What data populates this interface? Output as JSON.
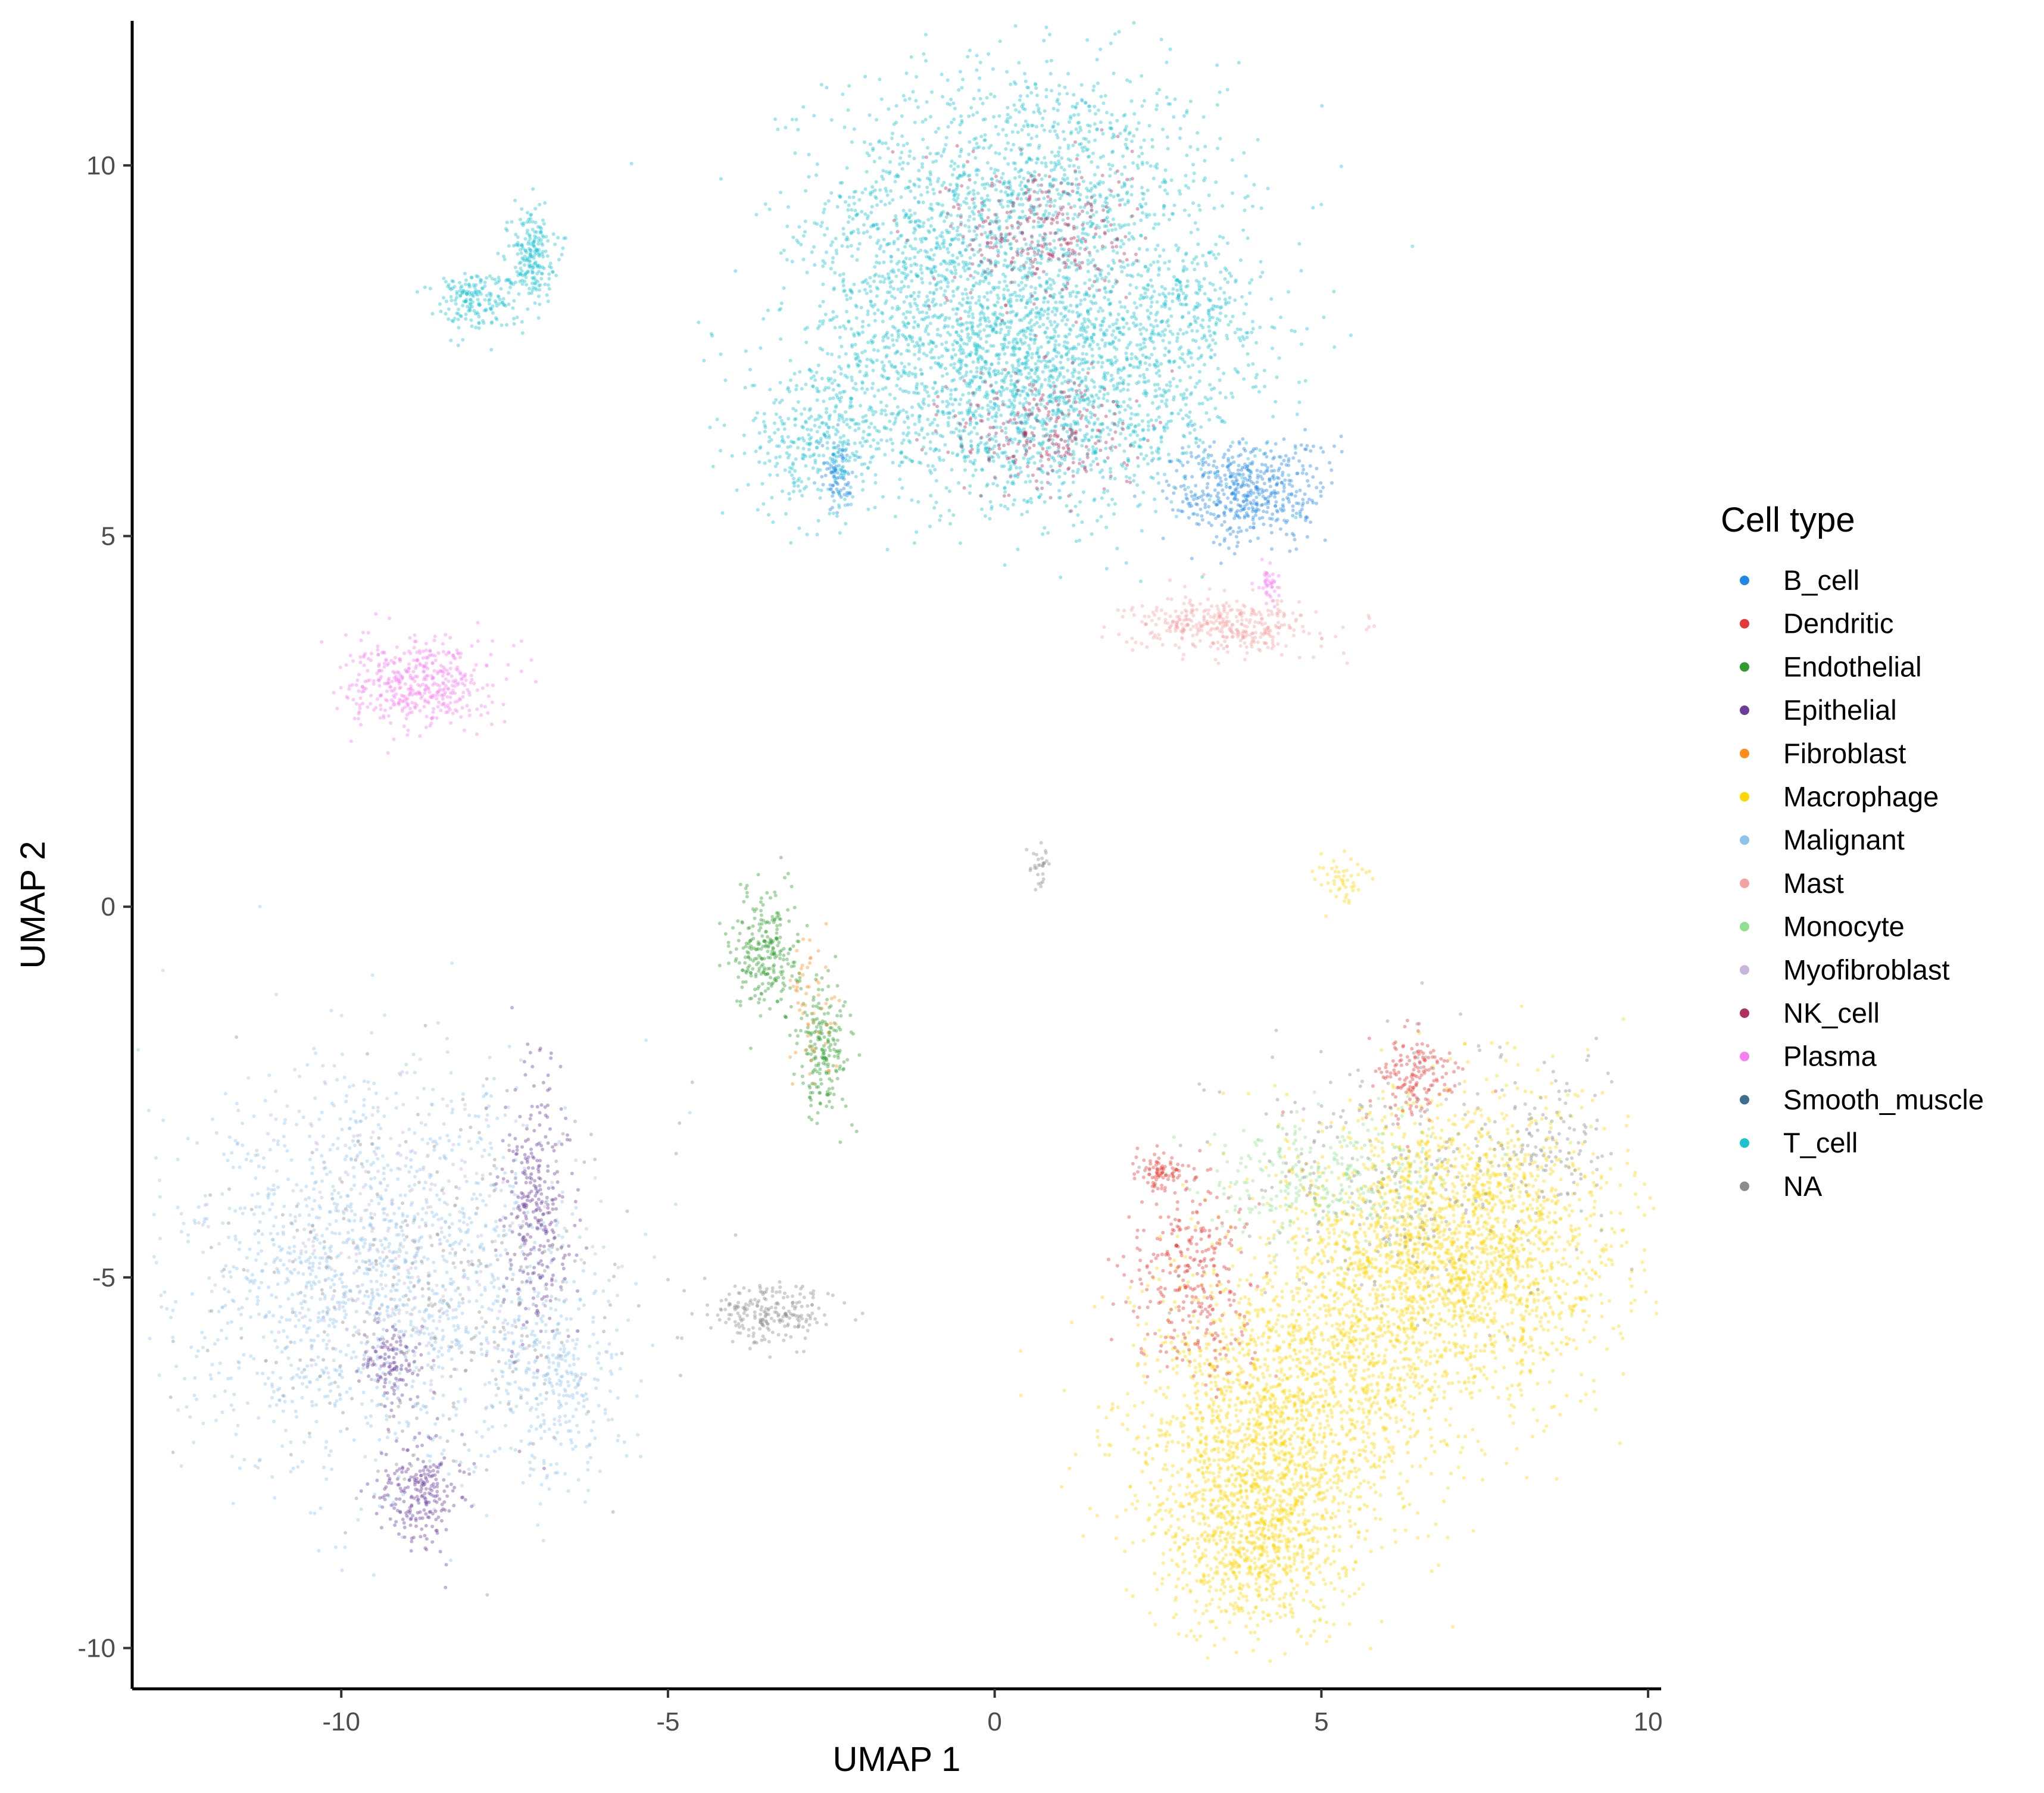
{
  "chart_data": {
    "type": "scatter",
    "title": "",
    "xlabel": "UMAP 1",
    "ylabel": "UMAP 2",
    "xlim": [
      -13.2,
      10.2
    ],
    "ylim": [
      -10.55,
      11.95
    ],
    "x_ticks": [
      -10,
      -5,
      0,
      5,
      10
    ],
    "y_ticks": [
      -10,
      -5,
      0,
      5,
      10
    ],
    "x_tick_labels": [
      "-10",
      "-5",
      "0",
      "5",
      "10"
    ],
    "y_tick_labels": [
      "-10",
      "-5",
      "0",
      "5",
      "10"
    ],
    "grid": false,
    "legend": {
      "title": "Cell type",
      "placement": "right",
      "entries": [
        {
          "name": "B_cell",
          "color": "#1E88E5"
        },
        {
          "name": "Dendritic",
          "color": "#E53935"
        },
        {
          "name": "Endothelial",
          "color": "#2E9D2E"
        },
        {
          "name": "Epithelial",
          "color": "#6A3D9A"
        },
        {
          "name": "Fibroblast",
          "color": "#FF8C1A"
        },
        {
          "name": "Macrophage",
          "color": "#FFD700"
        },
        {
          "name": "Malignant",
          "color": "#8EC4EA"
        },
        {
          "name": "Mast",
          "color": "#F4A3A3"
        },
        {
          "name": "Monocyte",
          "color": "#90E090"
        },
        {
          "name": "Myofibroblast",
          "color": "#C7B5DA"
        },
        {
          "name": "NK_cell",
          "color": "#B03060"
        },
        {
          "name": "Plasma",
          "color": "#F77FF0"
        },
        {
          "name": "Smooth_muscle",
          "color": "#3E6E8E"
        },
        {
          "name": "T_cell",
          "color": "#17C3CF"
        },
        {
          "name": "NA",
          "color": "#8C8C8C"
        }
      ]
    },
    "clusters": [
      {
        "type": "T_cell",
        "cx": 0.5,
        "cy": 9.6,
        "sx": 1.5,
        "sy": 0.9,
        "n": 1400
      },
      {
        "type": "T_cell",
        "cx": 0.6,
        "cy": 7.6,
        "sx": 1.6,
        "sy": 0.6,
        "n": 1100
      },
      {
        "type": "T_cell",
        "cx": 0.7,
        "cy": 6.5,
        "sx": 1.5,
        "sy": 0.6,
        "n": 1100
      },
      {
        "type": "T_cell",
        "cx": -1.2,
        "cy": 8.4,
        "sx": 0.9,
        "sy": 0.7,
        "n": 450
      },
      {
        "type": "T_cell",
        "cx": -2.6,
        "cy": 6.3,
        "sx": 0.6,
        "sy": 0.5,
        "n": 350
      },
      {
        "type": "T_cell",
        "cx": 3.0,
        "cy": 8.1,
        "sx": 0.5,
        "sy": 0.4,
        "n": 200
      },
      {
        "type": "NK_cell",
        "cx": 0.7,
        "cy": 9.1,
        "sx": 0.7,
        "sy": 0.5,
        "n": 300
      },
      {
        "type": "NK_cell",
        "cx": 0.8,
        "cy": 6.4,
        "sx": 0.7,
        "sy": 0.45,
        "n": 260
      },
      {
        "type": "T_cell",
        "cx": -7.1,
        "cy": 8.8,
        "sx": 0.18,
        "sy": 0.3,
        "n": 220
      },
      {
        "type": "T_cell",
        "cx": -8.0,
        "cy": 8.2,
        "sx": 0.3,
        "sy": 0.2,
        "n": 180
      },
      {
        "type": "B_cell",
        "cx": 3.9,
        "cy": 5.6,
        "sx": 0.6,
        "sy": 0.35,
        "n": 500
      },
      {
        "type": "B_cell",
        "cx": -2.4,
        "cy": 5.8,
        "sx": 0.12,
        "sy": 0.25,
        "n": 80
      },
      {
        "type": "Mast",
        "cx": 3.5,
        "cy": 3.8,
        "sx": 0.7,
        "sy": 0.18,
        "n": 380
      },
      {
        "type": "Plasma",
        "cx": -8.8,
        "cy": 3.0,
        "sx": 0.55,
        "sy": 0.3,
        "n": 450
      },
      {
        "type": "Plasma",
        "cx": 4.2,
        "cy": 4.35,
        "sx": 0.08,
        "sy": 0.15,
        "n": 40
      },
      {
        "type": "Endothelial",
        "cx": -3.5,
        "cy": -0.6,
        "sx": 0.25,
        "sy": 0.4,
        "n": 260
      },
      {
        "type": "Endothelial",
        "cx": -2.6,
        "cy": -1.9,
        "sx": 0.2,
        "sy": 0.45,
        "n": 200
      },
      {
        "type": "Fibroblast",
        "cx": -2.8,
        "cy": -1.4,
        "sx": 0.25,
        "sy": 0.5,
        "n": 60
      },
      {
        "type": "NA",
        "cx": -3.4,
        "cy": -5.5,
        "sx": 0.45,
        "sy": 0.2,
        "n": 220
      },
      {
        "type": "NA",
        "cx": 0.7,
        "cy": 0.6,
        "sx": 0.08,
        "sy": 0.15,
        "n": 30
      },
      {
        "type": "Macrophage",
        "cx": 5.3,
        "cy": 0.35,
        "sx": 0.22,
        "sy": 0.22,
        "n": 50
      },
      {
        "type": "Malignant",
        "cx": -9.5,
        "cy": -5.0,
        "sx": 1.5,
        "sy": 1.3,
        "n": 1500
      },
      {
        "type": "Malignant",
        "cx": -6.7,
        "cy": -6.4,
        "sx": 0.5,
        "sy": 0.7,
        "n": 300
      },
      {
        "type": "Epithelial",
        "cx": -7.0,
        "cy": -4.0,
        "sx": 0.25,
        "sy": 0.9,
        "n": 300
      },
      {
        "type": "Epithelial",
        "cx": -8.8,
        "cy": -7.9,
        "sx": 0.3,
        "sy": 0.35,
        "n": 230
      },
      {
        "type": "Epithelial",
        "cx": -9.2,
        "cy": -6.2,
        "sx": 0.25,
        "sy": 0.3,
        "n": 120
      },
      {
        "type": "NA",
        "cx": -8.5,
        "cy": -5.2,
        "sx": 1.6,
        "sy": 1.2,
        "n": 300
      },
      {
        "type": "Myofibroblast",
        "cx": -9.0,
        "cy": -4.5,
        "sx": 1.3,
        "sy": 1.1,
        "n": 250
      },
      {
        "type": "Macrophage",
        "cx": 7.3,
        "cy": -4.6,
        "sx": 1.1,
        "sy": 1.0,
        "n": 1900
      },
      {
        "type": "Macrophage",
        "cx": 4.3,
        "cy": -7.0,
        "sx": 1.1,
        "sy": 1.0,
        "n": 1700
      },
      {
        "type": "Macrophage",
        "cx": 3.9,
        "cy": -8.6,
        "sx": 0.7,
        "sy": 0.6,
        "n": 700
      },
      {
        "type": "Macrophage",
        "cx": 5.8,
        "cy": -5.2,
        "sx": 0.9,
        "sy": 1.0,
        "n": 700
      },
      {
        "type": "Monocyte",
        "cx": 5.0,
        "cy": -3.7,
        "sx": 1.0,
        "sy": 0.45,
        "n": 320
      },
      {
        "type": "Dendritic",
        "cx": 3.0,
        "cy": -5.0,
        "sx": 0.45,
        "sy": 0.7,
        "n": 320
      },
      {
        "type": "Dendritic",
        "cx": 6.4,
        "cy": -2.3,
        "sx": 0.3,
        "sy": 0.3,
        "n": 160
      },
      {
        "type": "Dendritic",
        "cx": 2.5,
        "cy": -3.6,
        "sx": 0.2,
        "sy": 0.13,
        "n": 80
      },
      {
        "type": "NA",
        "cx": 6.2,
        "cy": -3.5,
        "sx": 1.3,
        "sy": 0.9,
        "n": 260
      },
      {
        "type": "NA",
        "cx": 8.5,
        "cy": -3.2,
        "sx": 0.4,
        "sy": 0.5,
        "n": 110
      }
    ]
  }
}
